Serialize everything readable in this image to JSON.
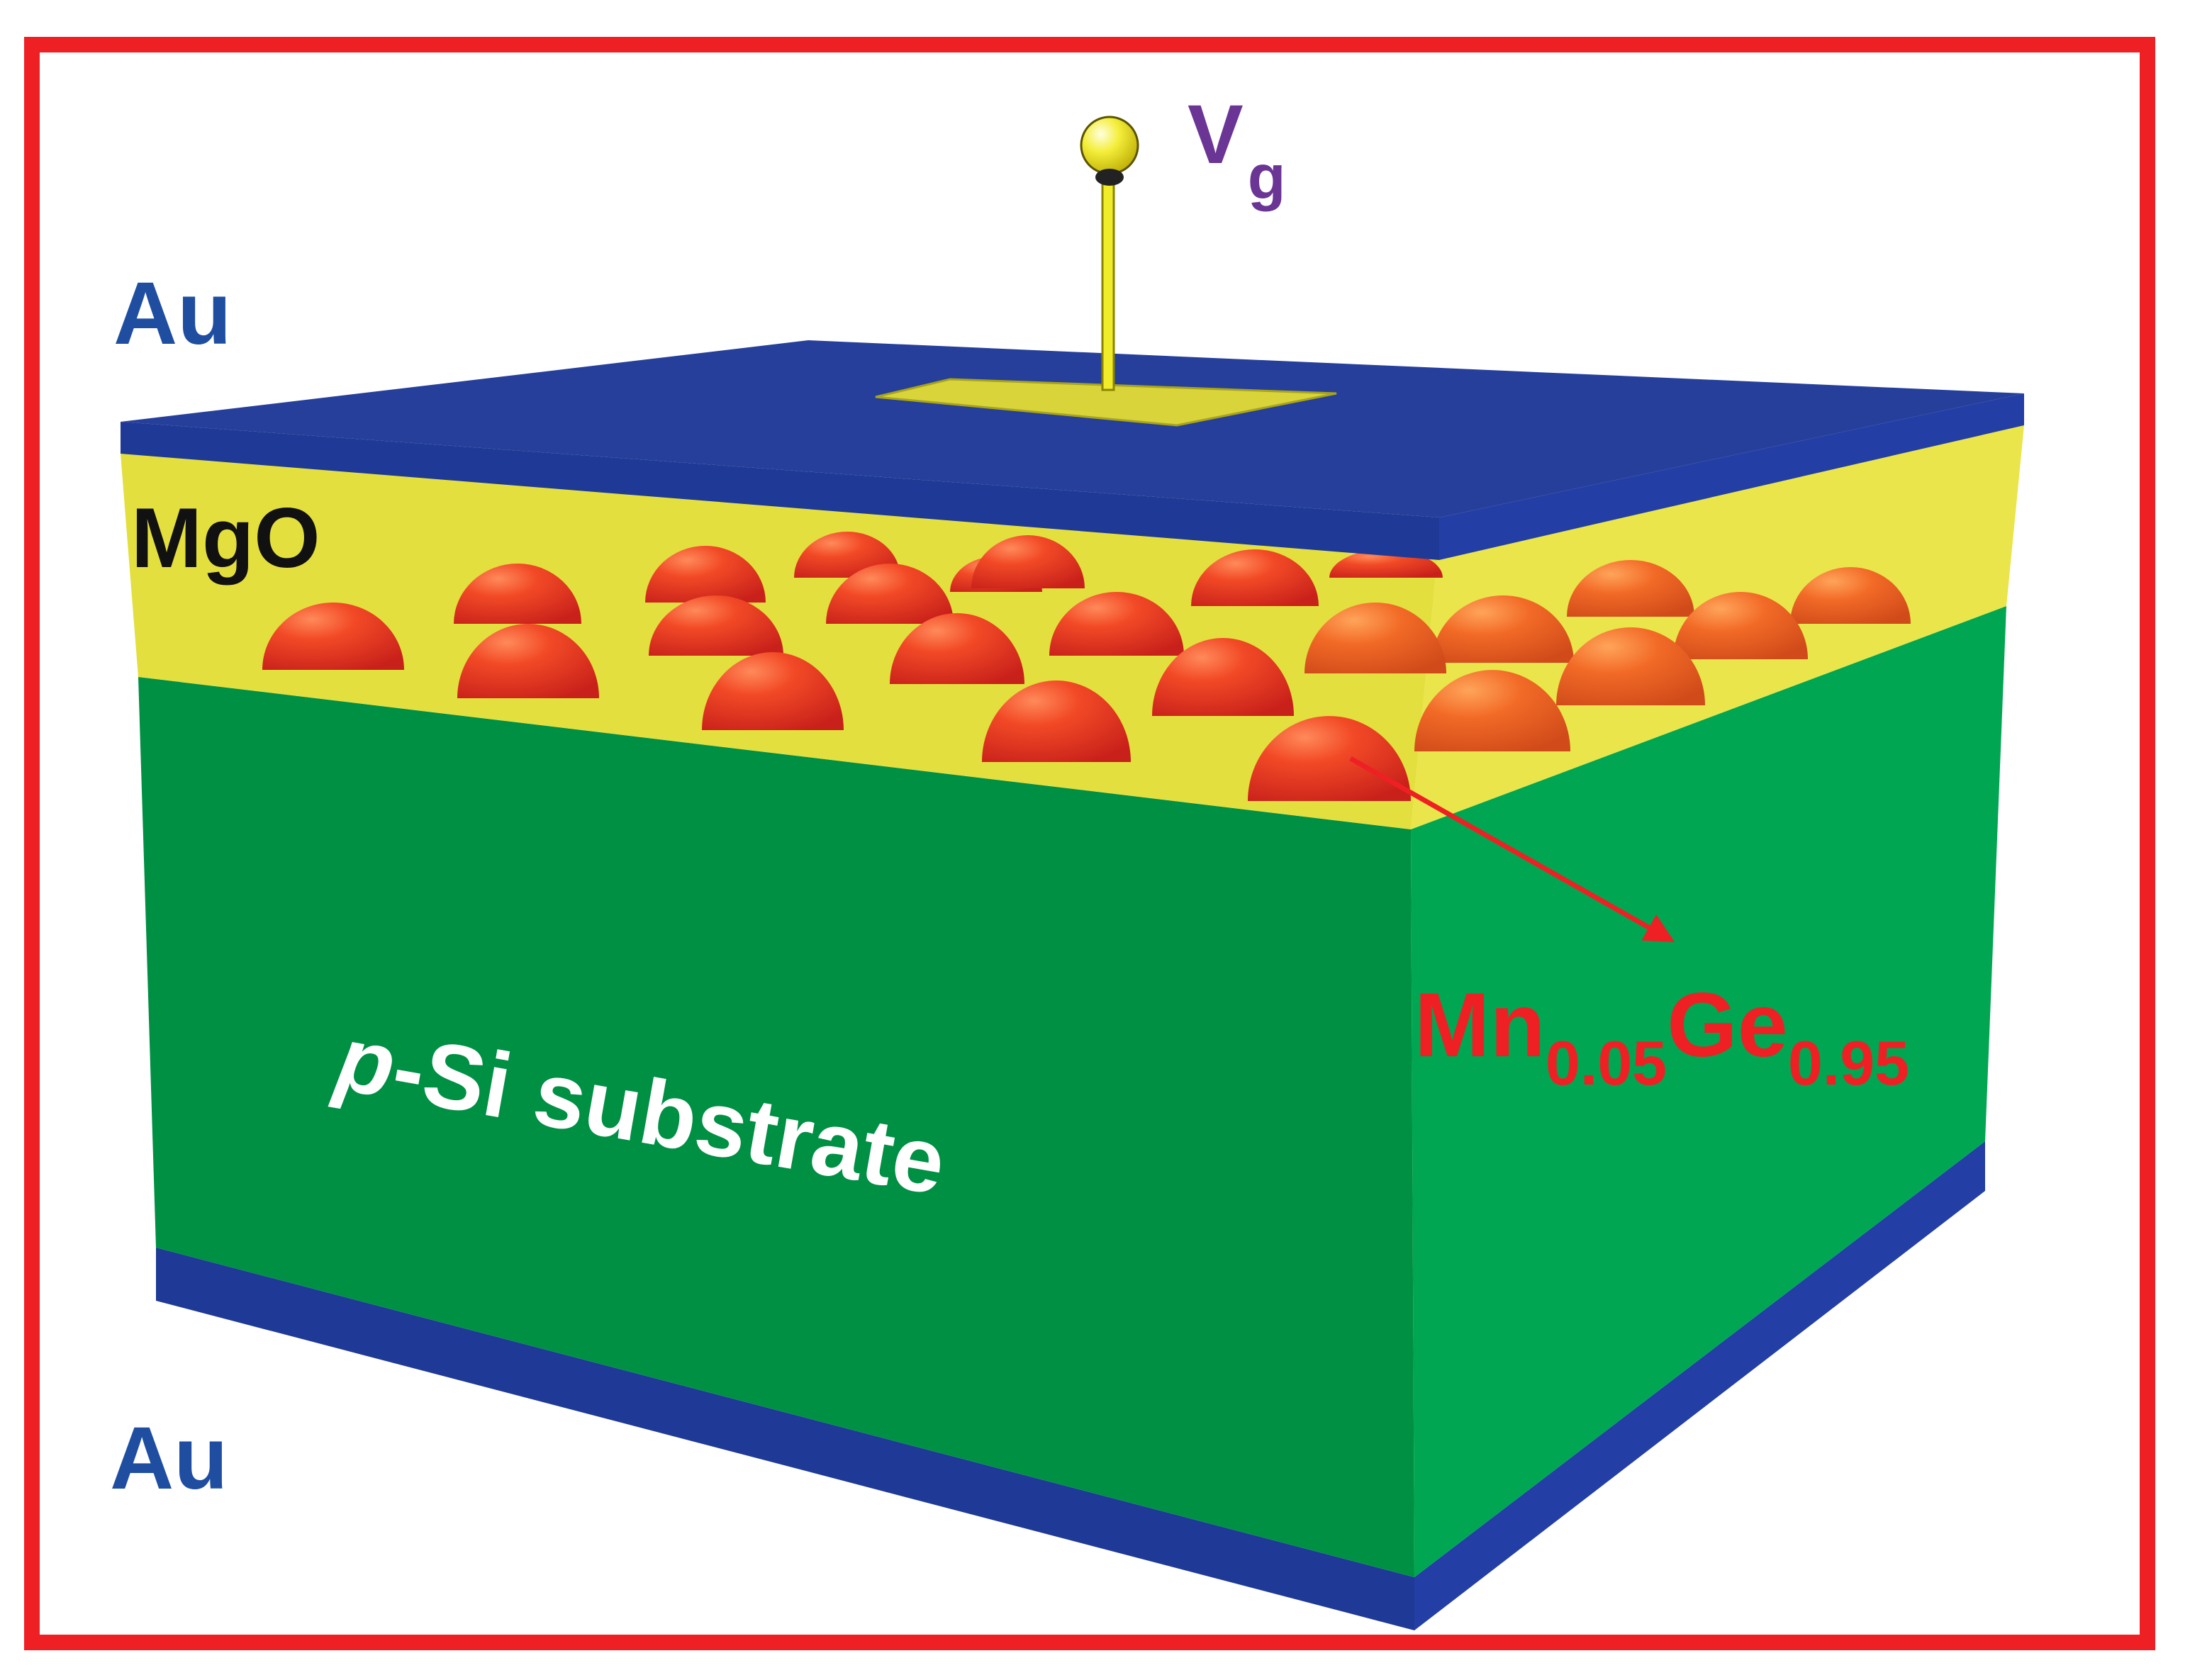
{
  "labels": {
    "gate_main": "V",
    "gate_sub": "g",
    "top_electrode": "Au",
    "oxide": "MgO",
    "substrate": "p-Si substrate",
    "substrate_italic_part": "p",
    "substrate_rest": "-Si substrate",
    "bottom_electrode": "Au",
    "dot_el1": "Mn",
    "dot_sub1": "0.05",
    "dot_el2": "Ge",
    "dot_sub2": "0.95"
  },
  "colors": {
    "frame": "#ee2024",
    "gold": "#e9e43a",
    "au_layer": "#1e3a96",
    "mgo": "#e3df3e",
    "substrate_front": "#009044",
    "substrate_side": "#00a651",
    "dot": "#ee3424",
    "label_blue": "#1f4ea1",
    "label_purple": "#6a3594",
    "label_red": "#ee2024"
  }
}
